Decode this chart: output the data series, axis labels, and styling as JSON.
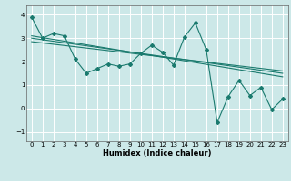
{
  "title": "",
  "xlabel": "Humidex (Indice chaleur)",
  "bg_color": "#cce8e8",
  "grid_color": "#ffffff",
  "line_color": "#1a7a6e",
  "xlim": [
    -0.5,
    23.5
  ],
  "ylim": [
    -1.4,
    4.4
  ],
  "xticks": [
    0,
    1,
    2,
    3,
    4,
    5,
    6,
    7,
    8,
    9,
    10,
    11,
    12,
    13,
    14,
    15,
    16,
    17,
    18,
    19,
    20,
    21,
    22,
    23
  ],
  "yticks": [
    -1,
    0,
    1,
    2,
    3,
    4
  ],
  "scatter_x": [
    0,
    1,
    2,
    3,
    4,
    5,
    6,
    7,
    8,
    9,
    10,
    11,
    12,
    13,
    14,
    15,
    16,
    17,
    18,
    19,
    20,
    21,
    22,
    23
  ],
  "scatter_y": [
    3.9,
    3.0,
    3.2,
    3.1,
    2.1,
    1.5,
    1.7,
    1.9,
    1.8,
    1.9,
    2.35,
    2.7,
    2.4,
    1.85,
    3.05,
    3.65,
    2.5,
    -0.6,
    0.5,
    1.2,
    0.55,
    0.9,
    -0.05,
    0.4
  ],
  "trend1_x": [
    0,
    23
  ],
  "trend1_y": [
    3.1,
    1.35
  ],
  "trend2_x": [
    0,
    23
  ],
  "trend2_y": [
    3.0,
    1.5
  ],
  "trend3_x": [
    0,
    23
  ],
  "trend3_y": [
    2.85,
    1.6
  ]
}
